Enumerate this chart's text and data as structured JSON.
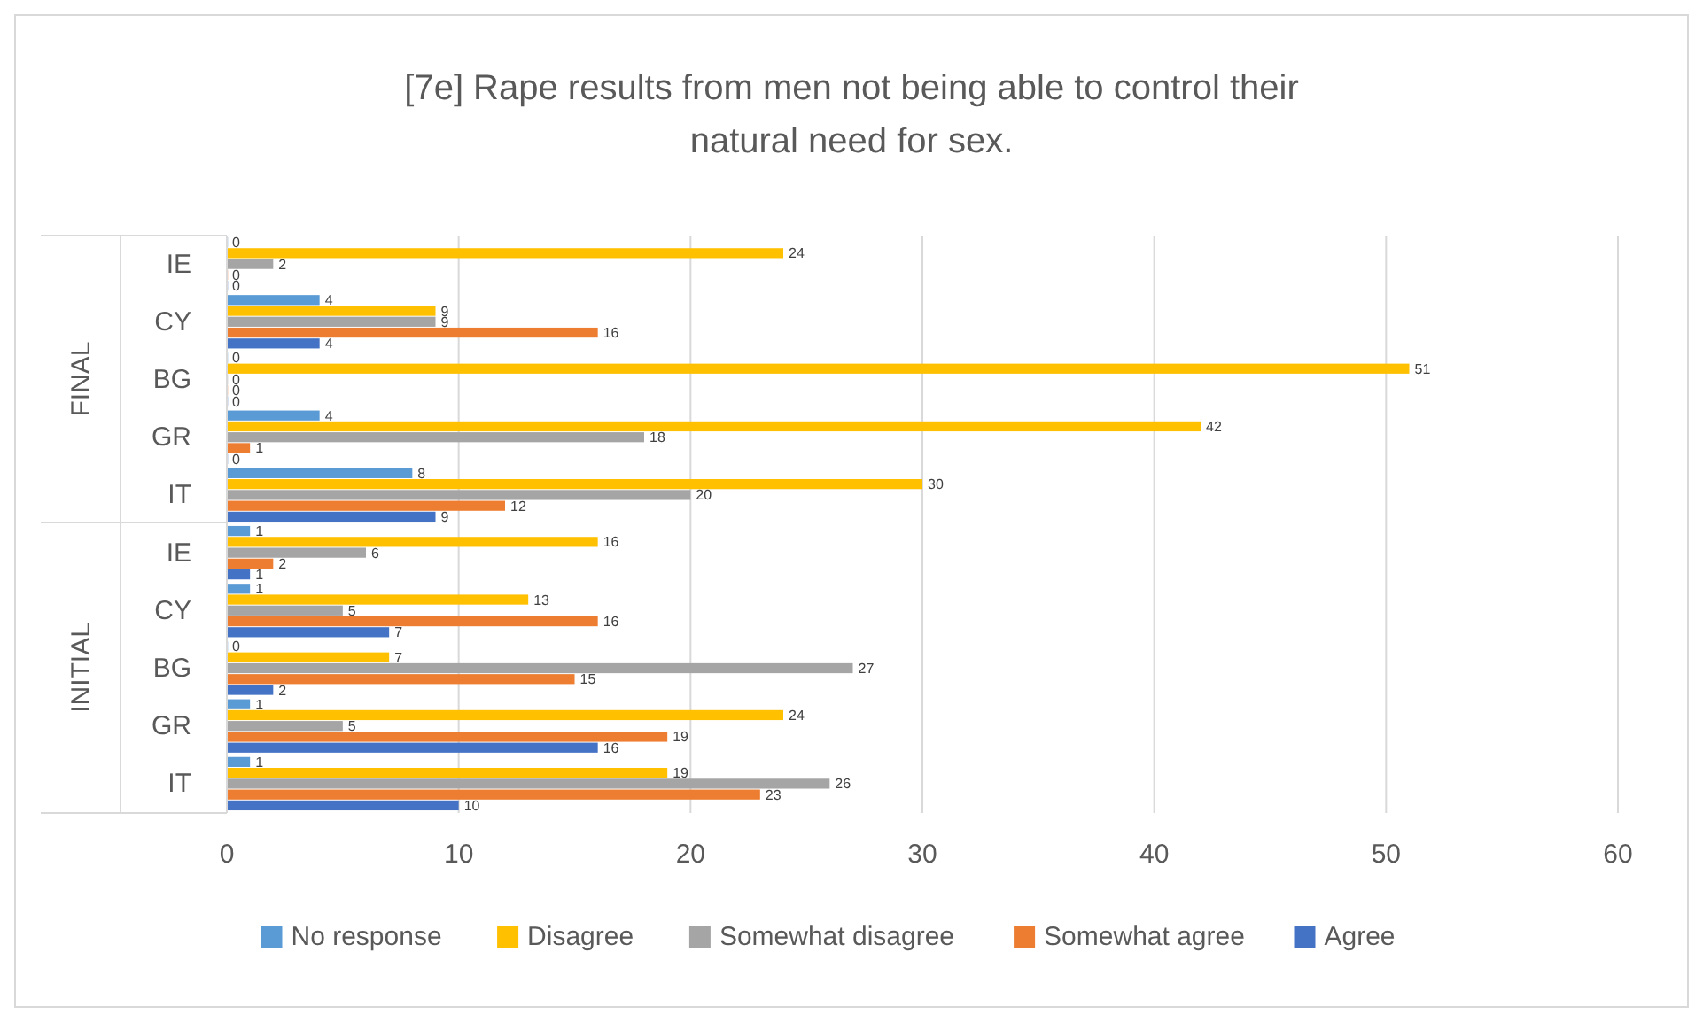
{
  "chart_data": {
    "type": "bar",
    "orientation": "horizontal",
    "title": "[7e] Rape results from men not being able to control their natural need for sex.",
    "categories": [
      "IE",
      "CY",
      "BG",
      "GR",
      "IT",
      "IE",
      "CY",
      "BG",
      "GR",
      "IT"
    ],
    "annotations": [
      "FINAL",
      "INITIAL"
    ],
    "series": [
      {
        "name": "No response",
        "color": "#5b9bd5",
        "values": [
          0,
          4,
          0,
          4,
          8,
          1,
          1,
          0,
          1,
          1
        ]
      },
      {
        "name": "Disagree",
        "color": "#ffc000",
        "values": [
          24,
          9,
          51,
          42,
          30,
          16,
          13,
          7,
          24,
          19
        ]
      },
      {
        "name": "Somewhat disagree",
        "color": "#a5a5a5",
        "values": [
          2,
          9,
          0,
          18,
          20,
          6,
          5,
          27,
          5,
          26
        ]
      },
      {
        "name": "Somewhat agree",
        "color": "#ed7d31",
        "values": [
          0,
          16,
          0,
          1,
          12,
          2,
          16,
          15,
          19,
          23
        ]
      },
      {
        "name": "Agree",
        "color": "#4472c4",
        "values": [
          0,
          4,
          0,
          0,
          9,
          1,
          7,
          2,
          16,
          10
        ]
      }
    ],
    "xlim": [
      0,
      60
    ],
    "xticks": [
      0,
      10,
      20,
      30,
      40,
      50,
      60
    ],
    "grid": "x",
    "legend": "bottom",
    "data_labels": true
  }
}
